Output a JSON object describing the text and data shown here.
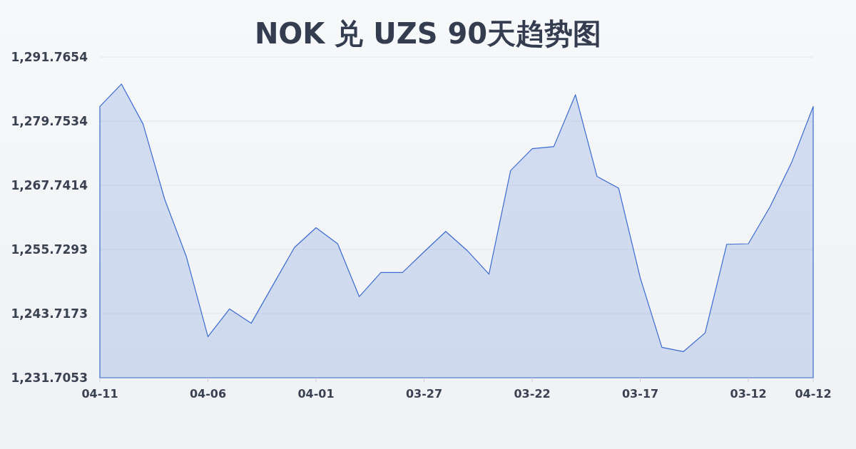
{
  "chart_data": {
    "type": "area",
    "title": "NOK 兑 UZS 90天趋势图",
    "categories": [
      "04-11",
      null,
      null,
      null,
      null,
      "04-06",
      null,
      null,
      null,
      null,
      "04-01",
      null,
      null,
      null,
      null,
      "03-27",
      null,
      null,
      null,
      null,
      "03-22",
      null,
      null,
      null,
      null,
      "03-17",
      null,
      null,
      null,
      null,
      "03-12",
      null,
      null,
      "04-12"
    ],
    "values": [
      1282.5,
      1286.7,
      1279.2,
      1265.1,
      1254.4,
      1239.4,
      1244.6,
      1241.9,
      1249.0,
      1256.1,
      1259.8,
      1256.8,
      1246.9,
      1251.4,
      1251.4,
      1255.3,
      1259.1,
      1255.5,
      1251.1,
      1270.5,
      1274.6,
      1275.0,
      1284.7,
      1269.4,
      1267.2,
      1250.4,
      1237.4,
      1236.6,
      1240.1,
      1256.7,
      1256.8,
      1263.7,
      1272.0,
      1282.5
    ],
    "color": "#3a6ad0",
    "ylim": [
      1231.7053,
      1291.7654
    ],
    "yticks": [
      {
        "value": 1231.7053,
        "label": "1,231.7053"
      },
      {
        "value": 1243.7173,
        "label": "1,243.7173"
      },
      {
        "value": 1255.7293,
        "label": "1,255.7293"
      },
      {
        "value": 1267.7414,
        "label": "1,267.7414"
      },
      {
        "value": 1279.7534,
        "label": "1,279.7534"
      },
      {
        "value": 1291.7654,
        "label": "1,291.7654"
      }
    ],
    "grid": "y"
  }
}
